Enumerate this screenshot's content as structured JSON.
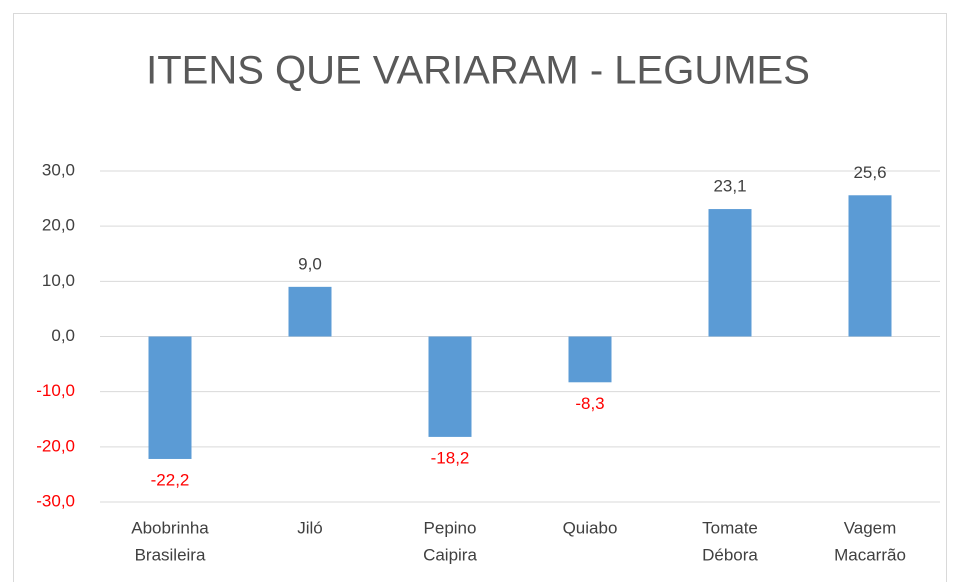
{
  "chart_data": {
    "type": "bar",
    "title": "ITENS QUE VARIARAM - LEGUMES",
    "categories": [
      [
        "Abobrinha",
        "Brasileira"
      ],
      [
        "Jiló"
      ],
      [
        "Pepino",
        "Caipira"
      ],
      [
        "Quiabo"
      ],
      [
        "Tomate",
        "Débora"
      ],
      [
        "Vagem",
        "Macarrão"
      ]
    ],
    "values": [
      -22.2,
      9.0,
      -18.2,
      -8.3,
      23.1,
      25.6
    ],
    "value_labels": [
      "-22,2",
      "9,0",
      "-18,2",
      "-8,3",
      "23,1",
      "25,6"
    ],
    "color": "#5b9bd5",
    "negative_label_color": "#ff0000",
    "ylim": [
      -30,
      30
    ],
    "yticks": [
      {
        "value": -30,
        "label": "-30,0"
      },
      {
        "value": -20,
        "label": "-20,0"
      },
      {
        "value": -10,
        "label": "-10,0"
      },
      {
        "value": 0,
        "label": "0,0"
      },
      {
        "value": 10,
        "label": "10,0"
      },
      {
        "value": 20,
        "label": "20,0"
      },
      {
        "value": 30,
        "label": "30,0"
      }
    ],
    "grid": true
  }
}
